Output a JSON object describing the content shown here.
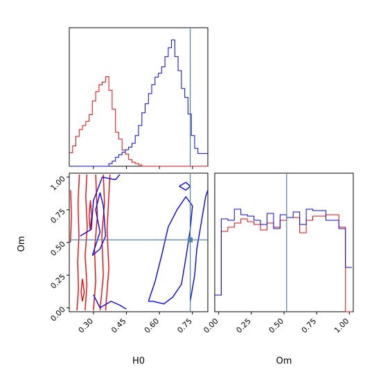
{
  "chart_data": {
    "type": "corner",
    "parameters": [
      "H0",
      "Om"
    ],
    "truth": {
      "H0": 0.74,
      "Om": 0.52
    },
    "truth_color": "#4682b4",
    "series": [
      {
        "color": "#ff0000"
      },
      {
        "color": "#0000ff"
      }
    ],
    "axes": {
      "H0": {
        "range": [
          0.19,
          0.82
        ],
        "ticks": [
          0.3,
          0.45,
          0.6,
          0.75
        ],
        "tick_labels": [
          "0.30",
          "0.45",
          "0.60",
          "0.75"
        ],
        "label": "H0"
      },
      "Om": {
        "range": [
          -0.03,
          1.03
        ],
        "ticks": [
          0.0,
          0.25,
          0.5,
          0.75,
          1.0
        ],
        "tick_labels": [
          "0.00",
          "0.25",
          "0.50",
          "0.75",
          "1.00"
        ],
        "label": "Om"
      }
    },
    "hist_H0": {
      "bins": [
        0.19,
        0.205,
        0.22,
        0.235,
        0.25,
        0.265,
        0.28,
        0.295,
        0.31,
        0.325,
        0.34,
        0.355,
        0.37,
        0.385,
        0.4,
        0.415,
        0.43,
        0.445,
        0.46,
        0.475,
        0.49,
        0.505,
        0.52,
        0.535,
        0.55,
        0.565,
        0.58,
        0.595,
        0.61,
        0.625,
        0.64,
        0.655,
        0.67,
        0.685,
        0.7,
        0.715,
        0.73,
        0.745,
        0.76,
        0.775,
        0.79,
        0.805,
        0.82
      ],
      "red": [
        0.1,
        0.15,
        0.22,
        0.27,
        0.3,
        0.33,
        0.38,
        0.48,
        0.55,
        0.6,
        0.62,
        0.66,
        0.56,
        0.42,
        0.25,
        0.2,
        0.12,
        0.09,
        0.05,
        0.03,
        0.02,
        0.01,
        0,
        0,
        0,
        0,
        0,
        0,
        0,
        0,
        0,
        0,
        0,
        0,
        0,
        0,
        0,
        0,
        0,
        0,
        0,
        0
      ],
      "blue": [
        0,
        0,
        0,
        0,
        0,
        0,
        0,
        0,
        0,
        0,
        0,
        0,
        0.02,
        0.04,
        0.07,
        0.09,
        0.11,
        0.13,
        0.15,
        0.18,
        0.24,
        0.32,
        0.42,
        0.49,
        0.57,
        0.64,
        0.7,
        0.73,
        0.78,
        0.86,
        0.93,
        0.99,
        0.86,
        0.75,
        0.61,
        0.54,
        0.41,
        0.24,
        0.14,
        0.1,
        0.1,
        0.1
      ]
    },
    "hist_Om": {
      "bins": [
        -0.03,
        0.02,
        0.07,
        0.12,
        0.17,
        0.22,
        0.27,
        0.32,
        0.37,
        0.42,
        0.47,
        0.52,
        0.57,
        0.62,
        0.67,
        0.72,
        0.77,
        0.82,
        0.87,
        0.92,
        0.97,
        1.02
      ],
      "red": [
        0.12,
        0.58,
        0.61,
        0.64,
        0.67,
        0.65,
        0.63,
        0.59,
        0.64,
        0.61,
        0.66,
        0.68,
        0.68,
        0.57,
        0.66,
        0.69,
        0.69,
        0.7,
        0.7,
        0.61,
        0.0
      ],
      "blue": [
        0.12,
        0.67,
        0.66,
        0.74,
        0.7,
        0.69,
        0.66,
        0.63,
        0.71,
        0.6,
        0.7,
        0.68,
        0.72,
        0.63,
        0.74,
        0.73,
        0.73,
        0.66,
        0.66,
        0.6,
        0.32
      ]
    }
  }
}
